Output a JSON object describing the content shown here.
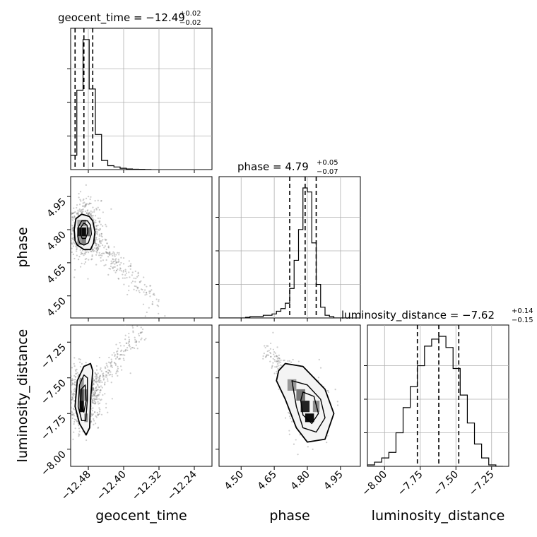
{
  "figure": {
    "titles": {
      "geocent_time": {
        "lead": "geocent_time = −12.49",
        "up": "+0.02",
        "down": "−0.02"
      },
      "phase": {
        "lead": "phase = 4.79",
        "up": "+0.05",
        "down": "−0.07"
      },
      "luminosity_distance": {
        "lead": "luminosity_distance = −7.62",
        "up": "+0.14",
        "down": "−0.15"
      }
    },
    "xlabels": {
      "geocent_time": "geocent_time",
      "phase": "phase",
      "luminosity_distance": "luminosity_distance"
    },
    "ylabels": {
      "phase": "phase",
      "luminosity_distance": "luminosity_distance"
    }
  },
  "chart_data": {
    "type": "corner",
    "parameters": [
      "geocent_time",
      "phase",
      "luminosity_distance"
    ],
    "ranges": {
      "geocent_time": [
        -12.52,
        -12.2
      ],
      "phase": [
        4.4,
        5.04
      ],
      "luminosity_distance": [
        -8.12,
        -7.13
      ]
    },
    "ticks": {
      "geocent_time": {
        "values": [
          -12.48,
          -12.4,
          -12.32,
          -12.24
        ],
        "labels": [
          "−12.48",
          "−12.40",
          "−12.32",
          "−12.24"
        ]
      },
      "phase": {
        "values": [
          4.5,
          4.65,
          4.8,
          4.95
        ],
        "labels": [
          "4.50",
          "4.65",
          "4.80",
          "4.95"
        ]
      },
      "luminosity_distance": {
        "values": [
          -8.0,
          -7.75,
          -7.5,
          -7.25
        ],
        "labels": [
          "−8.00",
          "−7.75",
          "−7.50",
          "−7.25"
        ]
      }
    },
    "quantiles": {
      "geocent_time": [
        -12.51,
        -12.49,
        -12.47
      ],
      "phase": [
        4.72,
        4.79,
        4.84
      ],
      "luminosity_distance": [
        -7.77,
        -7.62,
        -7.48
      ]
    },
    "histograms": {
      "geocent_time": {
        "bins": [
          -12.52,
          -12.506,
          -12.492,
          -12.478,
          -12.464,
          -12.45,
          -12.436,
          -12.422,
          -12.408,
          -12.394,
          -12.38,
          -12.366,
          -12.352,
          -12.338
        ],
        "heights": [
          0.11,
          0.61,
          1.0,
          0.62,
          0.27,
          0.07,
          0.03,
          0.02,
          0.01,
          0.005,
          0.003,
          0.002,
          0.001,
          0.0
        ]
      },
      "phase": {
        "bins": [
          4.4,
          4.42,
          4.44,
          4.46,
          4.48,
          4.5,
          4.52,
          4.54,
          4.56,
          4.58,
          4.6,
          4.62,
          4.64,
          4.66,
          4.68,
          4.7,
          4.72,
          4.74,
          4.76,
          4.78,
          4.8,
          4.82,
          4.84,
          4.86,
          4.88,
          4.9,
          4.92,
          4.94,
          4.96,
          4.98,
          5.0
        ],
        "heights": [
          0,
          0,
          0,
          0,
          0,
          0,
          0.005,
          0.01,
          0.01,
          0.01,
          0.02,
          0.02,
          0.03,
          0.05,
          0.07,
          0.11,
          0.22,
          0.43,
          0.66,
          0.97,
          0.94,
          0.56,
          0.25,
          0.08,
          0.02,
          0.01,
          0,
          0,
          0,
          0,
          0
        ]
      },
      "luminosity_distance": {
        "bins": [
          -8.12,
          -8.07,
          -8.02,
          -7.97,
          -7.92,
          -7.87,
          -7.82,
          -7.77,
          -7.72,
          -7.67,
          -7.62,
          -7.57,
          -7.52,
          -7.47,
          -7.42,
          -7.37,
          -7.32,
          -7.27,
          -7.22,
          -7.17
        ],
        "heights": [
          0.01,
          0.03,
          0.06,
          0.1,
          0.24,
          0.42,
          0.57,
          0.72,
          0.86,
          0.91,
          0.93,
          0.85,
          0.7,
          0.51,
          0.31,
          0.16,
          0.06,
          0.01,
          0.0
        ]
      }
    },
    "pairs": [
      {
        "x": "geocent_time",
        "y": "phase",
        "peak": [
          -12.49,
          4.8
        ],
        "contours": [
          [
            [
              -12.51,
              4.75
            ],
            [
              -12.505,
              4.73
            ],
            [
              -12.49,
              4.71
            ],
            [
              -12.475,
              4.71
            ],
            [
              -12.468,
              4.74
            ],
            [
              -12.465,
              4.79
            ],
            [
              -12.47,
              4.84
            ],
            [
              -12.478,
              4.86
            ],
            [
              -12.495,
              4.87
            ],
            [
              -12.508,
              4.85
            ],
            [
              -12.512,
              4.8
            ],
            [
              -12.51,
              4.75
            ]
          ],
          [
            [
              -12.504,
              4.77
            ],
            [
              -12.5,
              4.74
            ],
            [
              -12.49,
              4.73
            ],
            [
              -12.48,
              4.74
            ],
            [
              -12.473,
              4.78
            ],
            [
              -12.475,
              4.82
            ],
            [
              -12.482,
              4.84
            ],
            [
              -12.495,
              4.84
            ],
            [
              -12.503,
              4.81
            ],
            [
              -12.504,
              4.77
            ]
          ],
          [
            [
              -12.498,
              4.78
            ],
            [
              -12.494,
              4.76
            ],
            [
              -12.486,
              4.76
            ],
            [
              -12.481,
              4.79
            ],
            [
              -12.483,
              4.82
            ],
            [
              -12.49,
              4.83
            ],
            [
              -12.497,
              4.81
            ],
            [
              -12.498,
              4.78
            ]
          ]
        ],
        "density_bins": [
          {
            "x": -12.5,
            "y": 4.79,
            "w": 0.01,
            "h": 0.04,
            "level": 0.85
          },
          {
            "x": -12.49,
            "y": 4.79,
            "w": 0.01,
            "h": 0.04,
            "level": 0.95
          },
          {
            "x": -12.48,
            "y": 4.79,
            "w": 0.008,
            "h": 0.04,
            "level": 0.55
          },
          {
            "x": -12.5,
            "y": 4.75,
            "w": 0.01,
            "h": 0.04,
            "level": 0.35
          },
          {
            "x": -12.49,
            "y": 4.75,
            "w": 0.01,
            "h": 0.04,
            "level": 0.45
          },
          {
            "x": -12.5,
            "y": 4.83,
            "w": 0.01,
            "h": 0.03,
            "level": 0.3
          },
          {
            "x": -12.49,
            "y": 4.83,
            "w": 0.01,
            "h": 0.03,
            "level": 0.35
          }
        ],
        "scatter_cloud": {
          "center": [
            -12.49,
            4.8
          ],
          "trail_to": [
            -12.32,
            4.44
          ]
        }
      },
      {
        "x": "geocent_time",
        "y": "luminosity_distance",
        "peak": [
          -12.49,
          -7.64
        ],
        "contours": [
          [
            [
              -12.505,
              -7.52
            ],
            [
              -12.51,
              -7.7
            ],
            [
              -12.5,
              -7.82
            ],
            [
              -12.485,
              -7.9
            ],
            [
              -12.477,
              -7.85
            ],
            [
              -12.475,
              -7.65
            ],
            [
              -12.47,
              -7.45
            ],
            [
              -12.475,
              -7.4
            ],
            [
              -12.49,
              -7.42
            ],
            [
              -12.505,
              -7.52
            ]
          ],
          [
            [
              -12.5,
              -7.55
            ],
            [
              -12.503,
              -7.7
            ],
            [
              -12.495,
              -7.8
            ],
            [
              -12.486,
              -7.8
            ],
            [
              -12.482,
              -7.65
            ],
            [
              -12.482,
              -7.5
            ],
            [
              -12.49,
              -7.48
            ],
            [
              -12.5,
              -7.55
            ]
          ],
          [
            [
              -12.496,
              -7.58
            ],
            [
              -12.498,
              -7.7
            ],
            [
              -12.49,
              -7.74
            ],
            [
              -12.485,
              -7.66
            ],
            [
              -12.487,
              -7.55
            ],
            [
              -12.496,
              -7.58
            ]
          ]
        ],
        "density_bins": [
          {
            "x": -12.495,
            "y": -7.7,
            "w": 0.01,
            "h": 0.08,
            "level": 0.95
          },
          {
            "x": -12.495,
            "y": -7.62,
            "w": 0.01,
            "h": 0.08,
            "level": 0.7
          },
          {
            "x": -12.485,
            "y": -7.62,
            "w": 0.008,
            "h": 0.08,
            "level": 0.45
          },
          {
            "x": -12.495,
            "y": -7.54,
            "w": 0.01,
            "h": 0.08,
            "level": 0.35
          },
          {
            "x": -12.485,
            "y": -7.78,
            "w": 0.008,
            "h": 0.06,
            "level": 0.4
          }
        ],
        "scatter_cloud": {
          "center": [
            -12.49,
            -7.64
          ],
          "trail_to": [
            -12.36,
            -7.18
          ]
        }
      },
      {
        "x": "phase",
        "y": "luminosity_distance",
        "peak": [
          4.8,
          -7.74
        ],
        "contours": [
          [
            [
              4.67,
              -7.45
            ],
            [
              4.7,
              -7.4
            ],
            [
              4.78,
              -7.42
            ],
            [
              4.88,
              -7.58
            ],
            [
              4.92,
              -7.75
            ],
            [
              4.88,
              -7.93
            ],
            [
              4.8,
              -7.95
            ],
            [
              4.75,
              -7.85
            ],
            [
              4.7,
              -7.65
            ],
            [
              4.66,
              -7.52
            ],
            [
              4.67,
              -7.45
            ]
          ],
          [
            [
              4.73,
              -7.52
            ],
            [
              4.8,
              -7.55
            ],
            [
              4.86,
              -7.65
            ],
            [
              4.88,
              -7.78
            ],
            [
              4.84,
              -7.88
            ],
            [
              4.78,
              -7.85
            ],
            [
              4.75,
              -7.7
            ],
            [
              4.73,
              -7.52
            ]
          ],
          [
            [
              4.78,
              -7.6
            ],
            [
              4.83,
              -7.63
            ],
            [
              4.85,
              -7.75
            ],
            [
              4.82,
              -7.82
            ],
            [
              4.78,
              -7.76
            ],
            [
              4.77,
              -7.66
            ],
            [
              4.78,
              -7.6
            ]
          ]
        ],
        "density_bins": [
          {
            "x": 4.79,
            "y": -7.7,
            "w": 0.04,
            "h": 0.08,
            "level": 0.85
          },
          {
            "x": 4.81,
            "y": -7.78,
            "w": 0.04,
            "h": 0.06,
            "level": 0.95
          },
          {
            "x": 4.77,
            "y": -7.62,
            "w": 0.04,
            "h": 0.08,
            "level": 0.5
          },
          {
            "x": 4.73,
            "y": -7.55,
            "w": 0.04,
            "h": 0.08,
            "level": 0.35
          },
          {
            "x": 4.84,
            "y": -7.7,
            "w": 0.03,
            "h": 0.08,
            "level": 0.4
          }
        ],
        "scatter_cloud": {
          "center": [
            4.8,
            -7.7
          ],
          "trail_to": [
            4.62,
            -7.3
          ]
        }
      }
    ]
  }
}
